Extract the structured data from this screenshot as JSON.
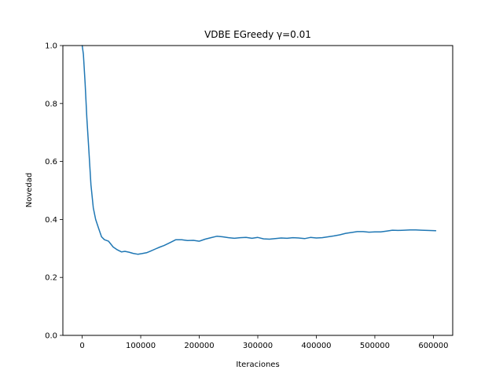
{
  "chart_data": {
    "type": "line",
    "title": "VDBE EGreedy  γ=0.01",
    "xlabel": "Iteraciones",
    "ylabel": "Novedad",
    "xlim": [
      -33000,
      633000
    ],
    "ylim": [
      0,
      1
    ],
    "xticks": [
      0,
      100000,
      200000,
      300000,
      400000,
      500000,
      600000
    ],
    "xtick_labels": [
      "0",
      "100000",
      "200000",
      "300000",
      "400000",
      "500000",
      "600000"
    ],
    "yticks": [
      0.0,
      0.2,
      0.4,
      0.6,
      0.8,
      1.0
    ],
    "ytick_labels": [
      "0.0",
      "0.2",
      "0.4",
      "0.6",
      "0.8",
      "1.0"
    ],
    "grid": false,
    "series": [
      {
        "color": "#1f77b4",
        "x": [
          0,
          2000,
          5000,
          8000,
          11000,
          15000,
          19000,
          23000,
          28000,
          33000,
          38000,
          45000,
          53000,
          60000,
          67000,
          73000,
          80000,
          87000,
          95000,
          102000,
          110000,
          118000,
          125000,
          133000,
          140000,
          150000,
          160000,
          170000,
          180000,
          190000,
          200000,
          210000,
          220000,
          230000,
          240000,
          250000,
          260000,
          270000,
          280000,
          290000,
          300000,
          310000,
          320000,
          330000,
          340000,
          350000,
          360000,
          370000,
          380000,
          390000,
          400000,
          410000,
          420000,
          430000,
          440000,
          450000,
          460000,
          470000,
          480000,
          490000,
          500000,
          510000,
          520000,
          530000,
          540000,
          550000,
          560000,
          570000,
          580000,
          590000,
          604000
        ],
        "y": [
          1.0,
          0.97,
          0.87,
          0.75,
          0.65,
          0.52,
          0.44,
          0.4,
          0.37,
          0.34,
          0.33,
          0.325,
          0.305,
          0.295,
          0.288,
          0.29,
          0.287,
          0.283,
          0.28,
          0.282,
          0.285,
          0.292,
          0.298,
          0.305,
          0.31,
          0.32,
          0.33,
          0.33,
          0.327,
          0.328,
          0.325,
          0.332,
          0.337,
          0.342,
          0.34,
          0.337,
          0.335,
          0.337,
          0.338,
          0.335,
          0.338,
          0.333,
          0.332,
          0.334,
          0.336,
          0.335,
          0.337,
          0.336,
          0.334,
          0.338,
          0.336,
          0.337,
          0.34,
          0.343,
          0.347,
          0.352,
          0.355,
          0.358,
          0.358,
          0.356,
          0.357,
          0.357,
          0.36,
          0.363,
          0.362,
          0.363,
          0.364,
          0.364,
          0.363,
          0.362,
          0.361
        ]
      }
    ]
  }
}
